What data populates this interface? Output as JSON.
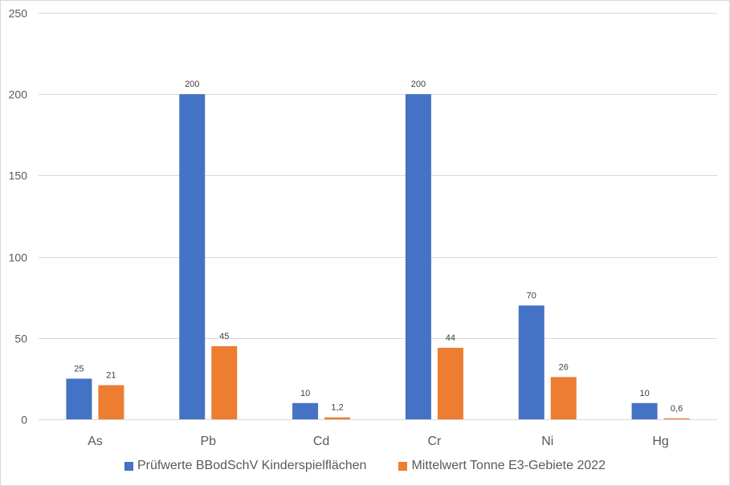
{
  "chart_data": {
    "type": "bar",
    "categories": [
      "As",
      "Pb",
      "Cd",
      "Cr",
      "Ni",
      "Hg"
    ],
    "series": [
      {
        "name": "Prüfwerte BBodSchV Kinderspielflächen",
        "color": "#4472C4",
        "values": [
          25,
          200,
          10,
          200,
          70,
          10
        ],
        "labels": [
          "25",
          "200",
          "10",
          "200",
          "70",
          "10"
        ]
      },
      {
        "name": "Mittelwert Tonne E3-Gebiete 2022",
        "color": "#ED7D31",
        "values": [
          21,
          45,
          1.2,
          44,
          26,
          0.6
        ],
        "labels": [
          "21",
          "45",
          "1,2",
          "44",
          "26",
          "0,6"
        ]
      }
    ],
    "ylim": [
      0,
      250
    ],
    "yticks": [
      0,
      50,
      100,
      150,
      200,
      250
    ],
    "grid": true,
    "legend_position": "bottom",
    "gridline_color": "#d9d9d9"
  }
}
